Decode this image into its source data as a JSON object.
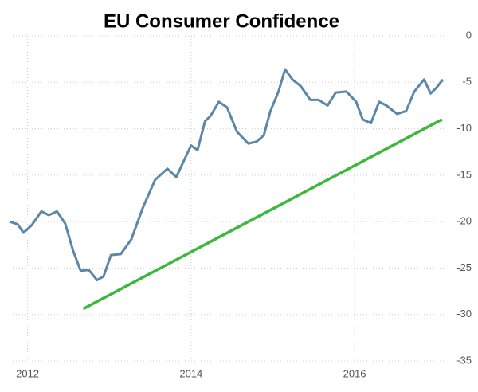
{
  "chart_data": {
    "type": "line",
    "title": "EU Consumer Confidence",
    "xlim": [
      2011.78,
      2017.12
    ],
    "xticks": [
      2012,
      2014,
      2016
    ],
    "ylim": [
      -35,
      0
    ],
    "yticks": [
      0,
      -5,
      -10,
      -15,
      -20,
      -25,
      -30,
      -35
    ],
    "grid": true,
    "y_axis_side": "right",
    "series": [
      {
        "color": "#5b88a8",
        "x": [
          2011.78,
          2011.88,
          2011.95,
          2012.05,
          2012.17,
          2012.26,
          2012.36,
          2012.46,
          2012.56,
          2012.65,
          2012.75,
          2012.85,
          2012.93,
          2013.02,
          2013.14,
          2013.27,
          2013.41,
          2013.56,
          2013.71,
          2013.82,
          2013.92,
          2014.0,
          2014.08,
          2014.17,
          2014.24,
          2014.34,
          2014.44,
          2014.56,
          2014.7,
          2014.8,
          2014.89,
          2014.97,
          2015.07,
          2015.15,
          2015.24,
          2015.34,
          2015.46,
          2015.56,
          2015.67,
          2015.77,
          2015.9,
          2016.02,
          2016.1,
          2016.2,
          2016.3,
          2016.39,
          2016.52,
          2016.63,
          2016.73,
          2016.85,
          2016.93,
          2017.0,
          2017.08
        ],
        "values": [
          -20,
          -20.3,
          -21.2,
          -20.4,
          -18.9,
          -19.3,
          -18.9,
          -20.2,
          -23.2,
          -25.3,
          -25.2,
          -26.3,
          -25.9,
          -23.6,
          -23.5,
          -21.9,
          -18.5,
          -15.5,
          -14.3,
          -15.2,
          -13.3,
          -11.8,
          -12.3,
          -9.2,
          -8.6,
          -7.1,
          -7.7,
          -10.3,
          -11.6,
          -11.4,
          -10.7,
          -8.1,
          -6.0,
          -3.6,
          -4.7,
          -5.4,
          -6.9,
          -6.9,
          -7.5,
          -6.1,
          -6.0,
          -7.1,
          -9.0,
          -9.4,
          -7.1,
          -7.5,
          -8.4,
          -8.1,
          -6.0,
          -4.7,
          -6.2,
          -5.6,
          -4.7
        ]
      },
      {
        "color": "#3cb83c",
        "x": [
          2012.68,
          2017.07
        ],
        "values": [
          -29.4,
          -9.0
        ]
      }
    ]
  }
}
